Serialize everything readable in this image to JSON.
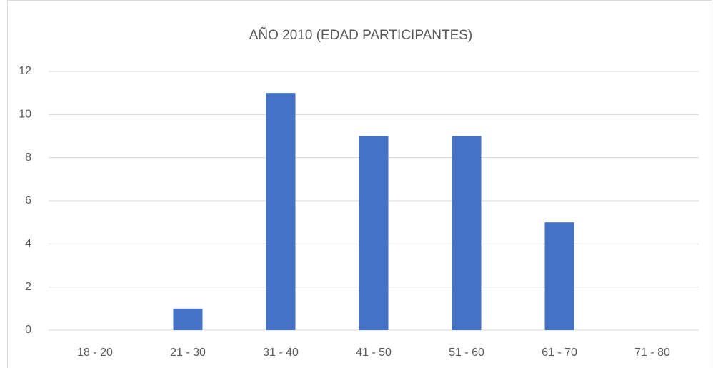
{
  "chart_data": {
    "type": "bar",
    "title": "AÑO 2010 (EDAD PARTICIPANTES)",
    "categories": [
      "18 - 20",
      "21 - 30",
      "31 - 40",
      "41 - 50",
      "51 - 60",
      "61 - 70",
      "71 - 80"
    ],
    "values": [
      0,
      1,
      11,
      9,
      9,
      5,
      0
    ],
    "color": "#4472c4",
    "ylim": [
      0,
      12
    ],
    "yticks": [
      0,
      2,
      4,
      6,
      8,
      10,
      12
    ],
    "grid": true
  }
}
